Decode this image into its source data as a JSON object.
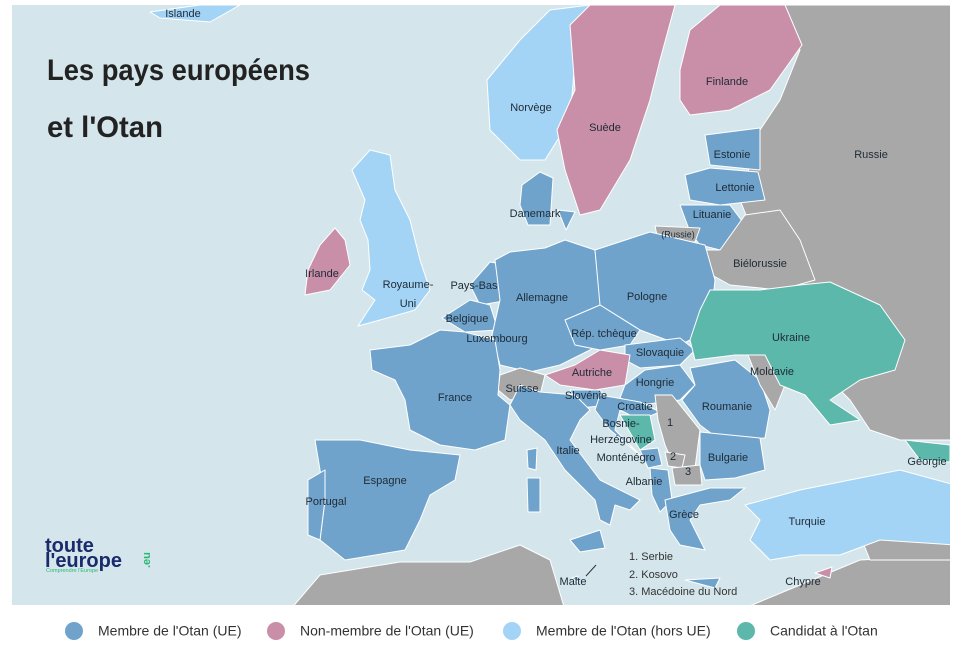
{
  "title": [
    "Les pays européens",
    "et l'Otan"
  ],
  "countries": [
    "Islande",
    "Norvège",
    "Suède",
    "Finlande",
    "Russie",
    "Estonie",
    "Lettonie",
    "Lituanie",
    "(Russie)",
    "Danemark",
    "Irlande",
    [
      "Royaume-",
      "Uni"
    ],
    "Pays-Bas",
    "Allemagne",
    "Pologne",
    "Biélorussie",
    "Belgique",
    "Luxembourg",
    "Rép. tchèque",
    "Ukraine",
    "Slovaquie",
    "Moldavie",
    "Autriche",
    "Suisse",
    "France",
    "Hongrie",
    "Slovénie",
    "Croatie",
    "Roumanie",
    [
      "Bosnie-",
      "Herzégovine"
    ],
    "Italie",
    "Monténégro",
    "Bulgarie",
    "Géorgie",
    "Espagne",
    "Albanie",
    "Portugal",
    "Grèce",
    "Turquie",
    "Malte",
    "Chypre"
  ],
  "map_numbers": [
    "1",
    "2",
    "3"
  ],
  "footnotes": [
    "1. Serbie",
    "2. Kosovo",
    "3. Macédoine du Nord"
  ],
  "logo": {
    "top": "toute",
    "bottom": "l'europe",
    "tld": ".eu",
    "tagline": "Comprendre l'Europe"
  },
  "legend": [
    {
      "label": "Membre de l'Otan (UE)",
      "color": "#6fa3cc"
    },
    {
      "label": "Non-membre de l'Otan (UE)",
      "color": "#c98fa8"
    },
    {
      "label": "Membre de l'Otan (hors UE)",
      "color": "#a3d4f5"
    },
    {
      "label": "Candidat à l'Otan",
      "color": "#5bb8aa"
    }
  ]
}
